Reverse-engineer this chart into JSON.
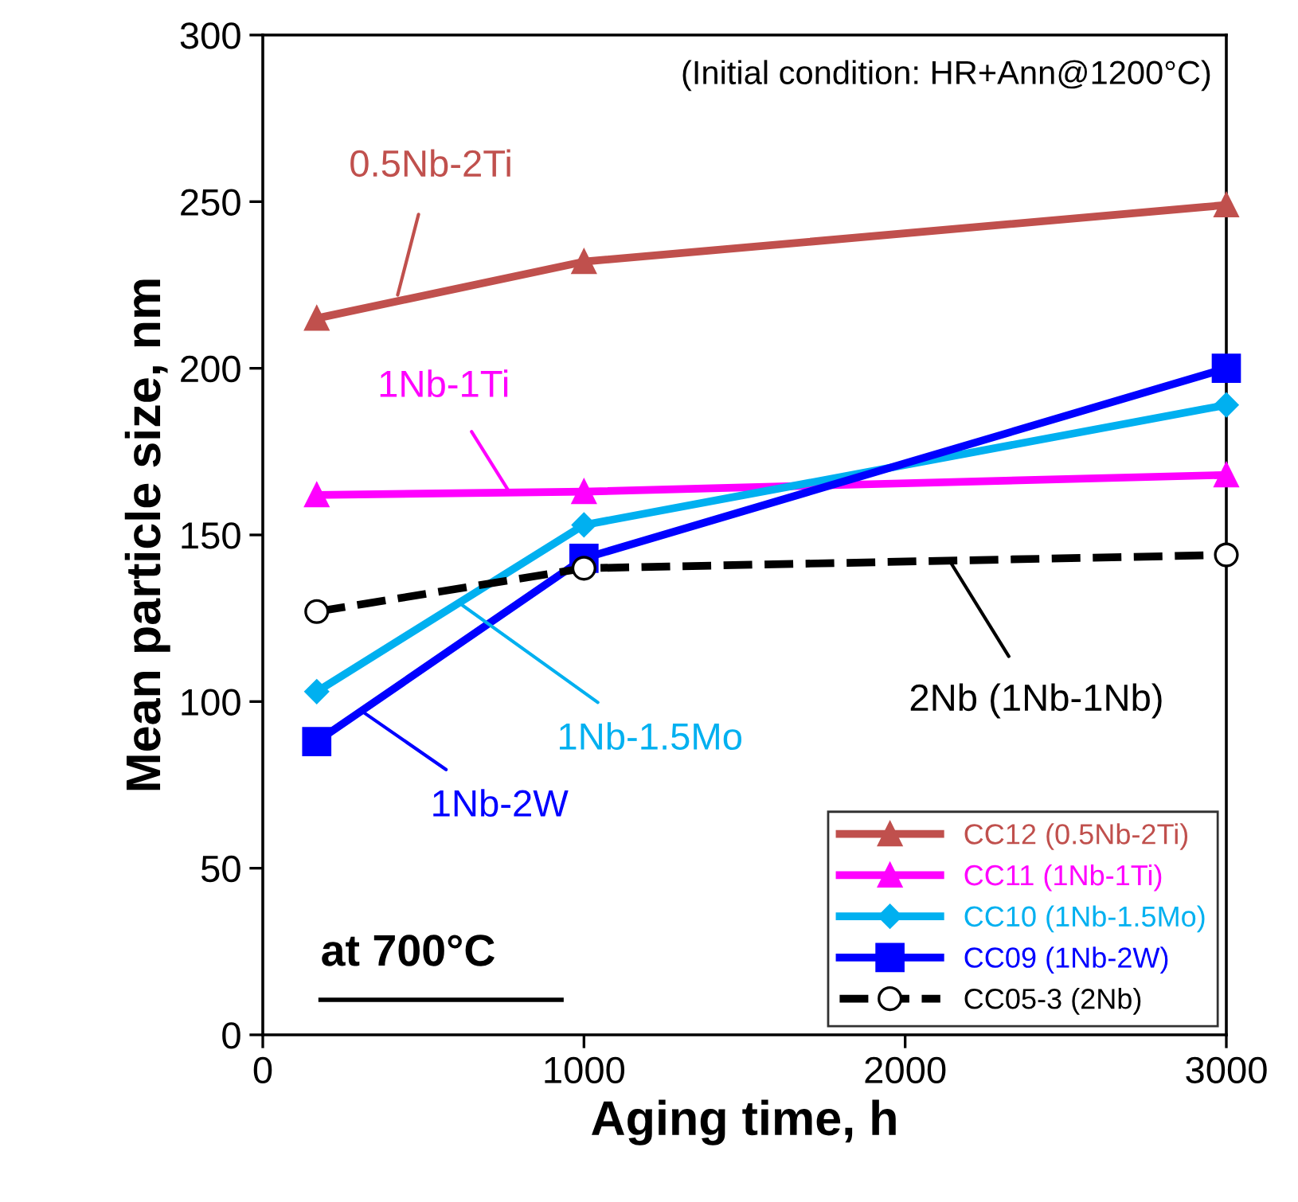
{
  "chart_data": {
    "type": "line",
    "xlabel": "Aging time, h",
    "ylabel": "Mean particle size, nm",
    "x": [
      168,
      1000,
      3000
    ],
    "series": [
      {
        "name": "CC12 (0.5Nb-2Ti)",
        "color": "#c0504d",
        "marker": "triangle",
        "line_style": "solid",
        "values": [
          215,
          232,
          249
        ]
      },
      {
        "name": "CC11 (1Nb-1Ti)",
        "color": "#ff00ff",
        "marker": "triangle",
        "line_style": "solid",
        "values": [
          162,
          163,
          168
        ]
      },
      {
        "name": "CC10 (1Nb-1.5Mo)",
        "color": "#00b0f0",
        "marker": "diamond",
        "line_style": "solid",
        "values": [
          103,
          153,
          189
        ]
      },
      {
        "name": "CC09 (1Nb-2W)",
        "color": "#0000ff",
        "marker": "square",
        "line_style": "solid",
        "values": [
          88,
          143,
          200
        ]
      },
      {
        "name": "CC05-3 (2Nb)",
        "color": "#000000",
        "marker": "circle",
        "line_style": "dashed",
        "values": [
          127,
          140,
          144
        ]
      }
    ],
    "xlim": [
      0,
      3000
    ],
    "xticks": [
      0,
      1000,
      2000,
      3000
    ],
    "ylim": [
      0,
      300
    ],
    "yticks": [
      0,
      50,
      100,
      150,
      200,
      250,
      300
    ],
    "grid": false,
    "legend": "bottom right",
    "annotations": [
      {
        "text": "0.5Nb-2Ti",
        "x": 420,
        "y": 222
      },
      {
        "text": "1Nb-1Ti",
        "x": 770,
        "y": 162.5
      },
      {
        "text": "1Nb-1.5Mo",
        "x": 620,
        "y": 129
      },
      {
        "text": "1Nb-2W",
        "x": 310,
        "y": 97
      },
      {
        "text": "2Nb (1Nb-1Nb)",
        "x": 2140,
        "y": 142
      },
      "(Initial condition: HR+Ann@1200°C)",
      "at 700°C"
    ]
  }
}
